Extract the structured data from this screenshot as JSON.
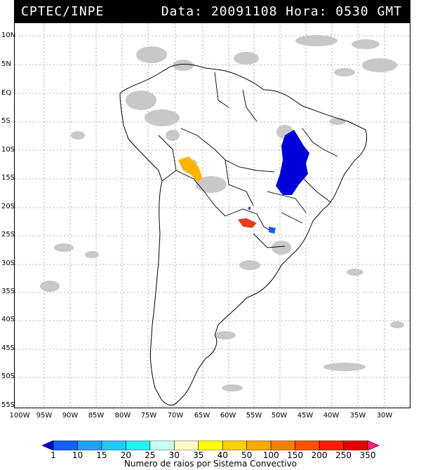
{
  "header": {
    "source": "CPTEC/INPE",
    "datetime": "Data: 20091108 Hora: 0530 GMT"
  },
  "map": {
    "lat_labels": [
      "10N",
      "5N",
      "EQ",
      "5S",
      "10S",
      "15S",
      "20S",
      "25S",
      "30S",
      "35S",
      "40S",
      "45S",
      "50S",
      "55S"
    ],
    "lon_labels": [
      "100W",
      "95W",
      "90W",
      "85W",
      "80W",
      "75W",
      "70W",
      "65W",
      "60W",
      "55W",
      "50W",
      "45W",
      "40W",
      "35W",
      "30W"
    ]
  },
  "colorbar": {
    "labels": [
      "1",
      "10",
      "15",
      "20",
      "25",
      "30",
      "35",
      "40",
      "50",
      "100",
      "150",
      "200",
      "250",
      "350"
    ],
    "colors": [
      "#0000d8",
      "#1460ff",
      "#1ea0ff",
      "#20c8ff",
      "#28f0f0",
      "#c8fff0",
      "#fffac8",
      "#ffff00",
      "#ffd000",
      "#ffa800",
      "#ff8000",
      "#ff5000",
      "#ff1e00",
      "#e00000",
      "#ff2080"
    ],
    "caption": "Numero de raios por Sistema Convectivo"
  }
}
